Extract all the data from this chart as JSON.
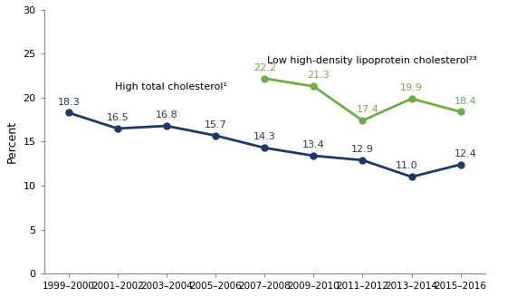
{
  "x_labels": [
    "1999–2000",
    "2001–2002",
    "2003–2004",
    "2005–2006",
    "2007–2008",
    "2009–2010",
    "2011–2012",
    "2013–2014",
    "2015–2016"
  ],
  "x_positions": [
    0,
    1,
    2,
    3,
    4,
    5,
    6,
    7,
    8
  ],
  "high_chol_values": [
    18.3,
    16.5,
    16.8,
    15.7,
    14.3,
    13.4,
    12.9,
    11.0,
    12.4
  ],
  "low_hdl_values": [
    null,
    null,
    null,
    null,
    22.2,
    21.3,
    17.4,
    19.9,
    18.4
  ],
  "high_chol_color": "#1f3864",
  "low_hdl_color": "#70ad47",
  "high_chol_label": "High total cholesterol¹",
  "low_hdl_label": "Low high-density lipoprotein cholesterol²³",
  "ylabel": "Percent",
  "ylim": [
    0,
    30
  ],
  "yticks": [
    0,
    5,
    10,
    15,
    20,
    25,
    30
  ],
  "background_color": "#ffffff",
  "label_fontsize": 8,
  "annotation_fontsize": 8,
  "axis_label_fontsize": 9
}
